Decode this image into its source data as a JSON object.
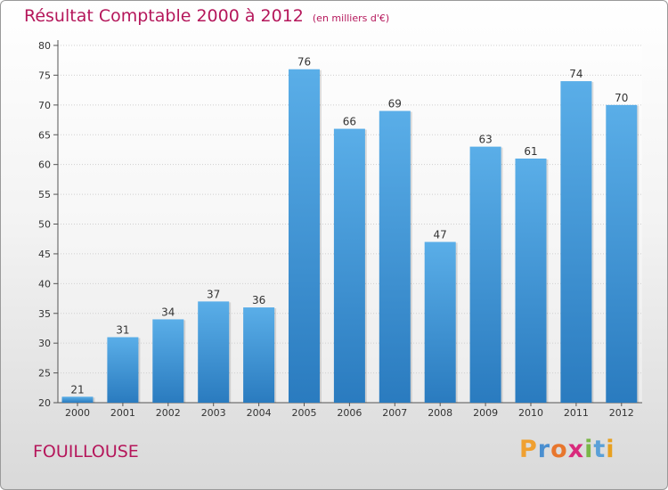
{
  "title": "Résultat Comptable 2000 à 2012",
  "subtitle": "(en milliers d'€)",
  "town": "FOUILLOUSE",
  "logo": {
    "letters": [
      "P",
      "r",
      "o",
      "x",
      "i",
      "t",
      "i"
    ],
    "colors": [
      "#f0a030",
      "#4a8fd0",
      "#e8762d",
      "#d92a7c",
      "#7ab648",
      "#5aa0d8",
      "#e8a020"
    ]
  },
  "colors": {
    "title": "#b5175b",
    "bar_top": "#5aaee8",
    "bar_bottom": "#2a7bbf"
  },
  "chart_data": {
    "type": "bar",
    "categories": [
      "2000",
      "2001",
      "2002",
      "2003",
      "2004",
      "2005",
      "2006",
      "2007",
      "2008",
      "2009",
      "2010",
      "2011",
      "2012"
    ],
    "values": [
      21,
      31,
      34,
      37,
      36,
      76,
      66,
      69,
      47,
      63,
      61,
      74,
      70
    ],
    "ylim": [
      20,
      80
    ],
    "yticks": [
      20,
      25,
      30,
      35,
      40,
      45,
      50,
      55,
      60,
      65,
      70,
      75,
      80
    ],
    "grid": true,
    "xlabel": "",
    "ylabel": ""
  }
}
